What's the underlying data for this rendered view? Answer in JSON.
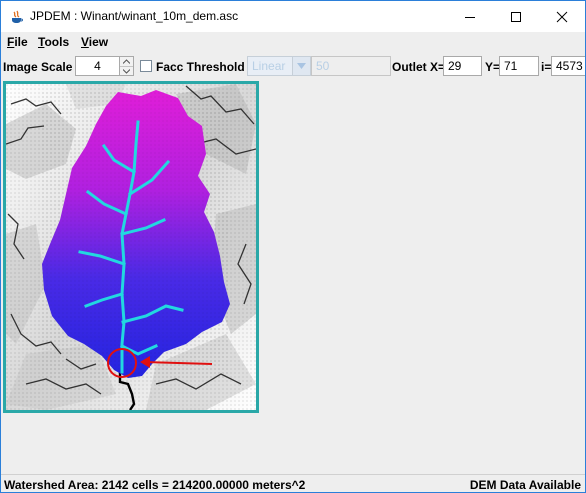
{
  "window": {
    "title": "JPDEM : Winant/winant_10m_dem.asc"
  },
  "menu": {
    "items": [
      "File",
      "Tools",
      "View"
    ]
  },
  "toolbar": {
    "image_scale_label": "Image Scale",
    "image_scale_value": "4",
    "facc_threshold_label": "Facc Threshold",
    "facc_threshold_checked": false,
    "scale_type_value": "Linear",
    "threshold_value": "50",
    "outlet_x_label": "Outlet X=",
    "outlet_x_value": "29",
    "outlet_y_label": "Y=",
    "outlet_y_value": "71",
    "index_label": "i=",
    "index_value": "4573"
  },
  "map": {
    "icon": "dem-watershed-raster",
    "colors": {
      "watershed_top": "#e020d8",
      "watershed_bottom": "#2a28e8",
      "stream": "#20d8d8",
      "outlet_marker": "#e01010",
      "frame": "#2aa8a8"
    }
  },
  "status": {
    "left": "Watershed Area: 2142 cells = 214200.00000 meters^2",
    "right": "DEM Data Available"
  }
}
